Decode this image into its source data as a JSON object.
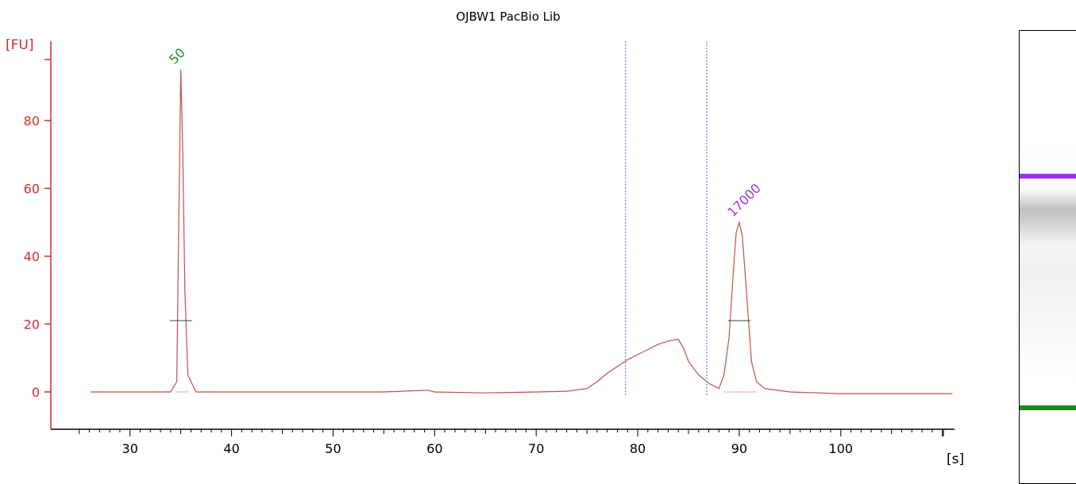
{
  "chart_data": {
    "type": "line",
    "title": "OJBW1 PacBio Lib",
    "xlabel": "[s]",
    "ylabel": "[FU]",
    "xlim": [
      22.2,
      111.2
    ],
    "ylim": [
      -11,
      105
    ],
    "x_ticks": [
      30,
      40,
      50,
      60,
      70,
      80,
      90,
      100
    ],
    "y_ticks": [
      0,
      20,
      40,
      60,
      80
    ],
    "grid": false,
    "colors": {
      "trace": "#c0504d",
      "axis": "#d42b2b",
      "xaxis": "#000000",
      "marker_low": "#1e8c1e",
      "marker_high": "#9b30ff",
      "region": "#6a5acd",
      "band_low": "#1a8a1a",
      "band_high": "#9b30ff"
    },
    "series": [
      {
        "x": [
          26.1,
          30,
          34,
          34.6,
          34.8,
          35.0,
          35.2,
          35.4,
          35.7,
          36.5,
          40,
          45,
          50,
          55,
          59.3,
          59.6,
          60,
          65,
          70,
          73,
          75,
          76,
          77,
          78,
          79,
          80,
          81,
          82,
          83,
          84,
          84.5,
          85,
          86,
          87,
          88,
          88.5,
          89,
          89.4,
          89.7,
          90.0,
          90.3,
          90.7,
          91.2,
          91.7,
          92.5,
          95,
          100,
          105,
          111
        ],
        "y": [
          0,
          0,
          0,
          3,
          50,
          95,
          70,
          30,
          5,
          0,
          0,
          0,
          0,
          0,
          0.5,
          0.3,
          0,
          -0.3,
          0,
          0.2,
          1,
          3,
          5.5,
          7.5,
          9.5,
          11,
          12.5,
          14,
          15,
          15.5,
          13,
          9,
          5,
          2.5,
          1,
          5,
          16,
          35,
          47,
          50,
          46,
          30,
          9,
          3,
          1,
          0,
          -0.5,
          -0.5,
          -0.5
        ]
      }
    ],
    "peaks": [
      {
        "label": "50",
        "x": 35.0,
        "y": 95
      },
      {
        "label": "17000",
        "x": 90.0,
        "y": 50
      }
    ],
    "region_markers_x": [
      78.8,
      86.8
    ],
    "gel_bands": [
      {
        "label": "upper marker",
        "position": 0.32
      },
      {
        "label": "lower marker",
        "position": 0.83
      }
    ]
  }
}
